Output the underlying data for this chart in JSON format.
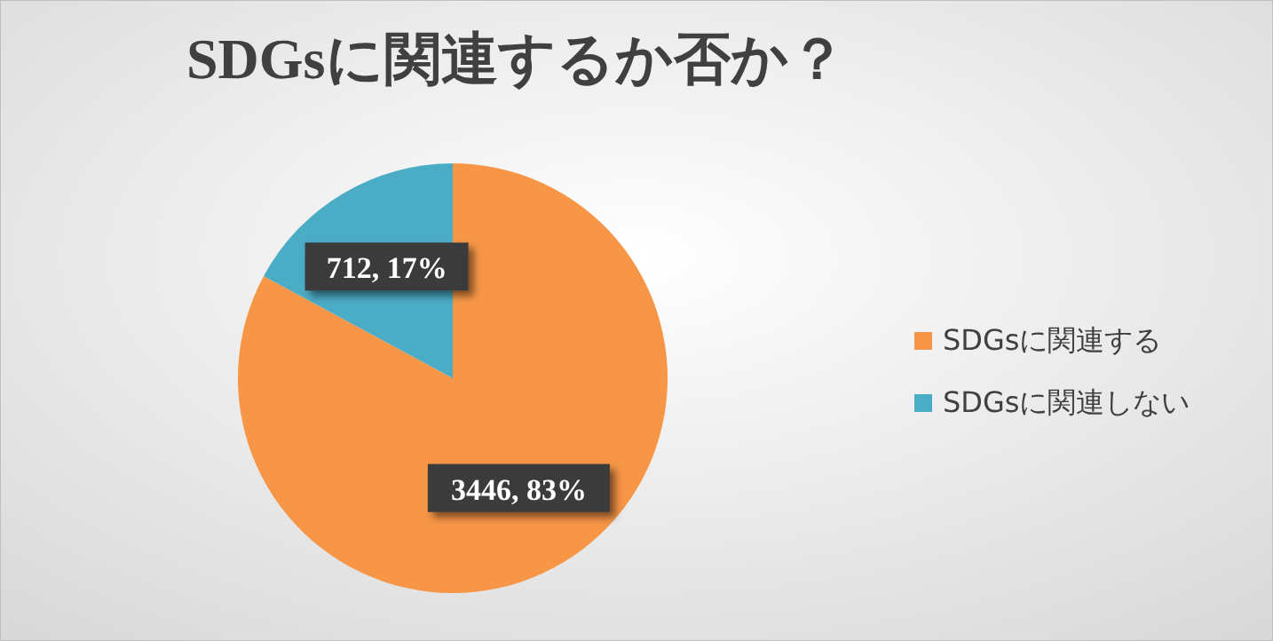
{
  "chart_data": {
    "type": "pie",
    "title": "SDGsに関連するか否か？",
    "categories": [
      "SDGsに関連する",
      "SDGsに関連しない"
    ],
    "values": [
      3446,
      712
    ],
    "colors": [
      "#f79646",
      "#4bacc6"
    ],
    "value_labels": [
      "3446, 83%",
      "712, 17%"
    ],
    "legend": "right"
  }
}
